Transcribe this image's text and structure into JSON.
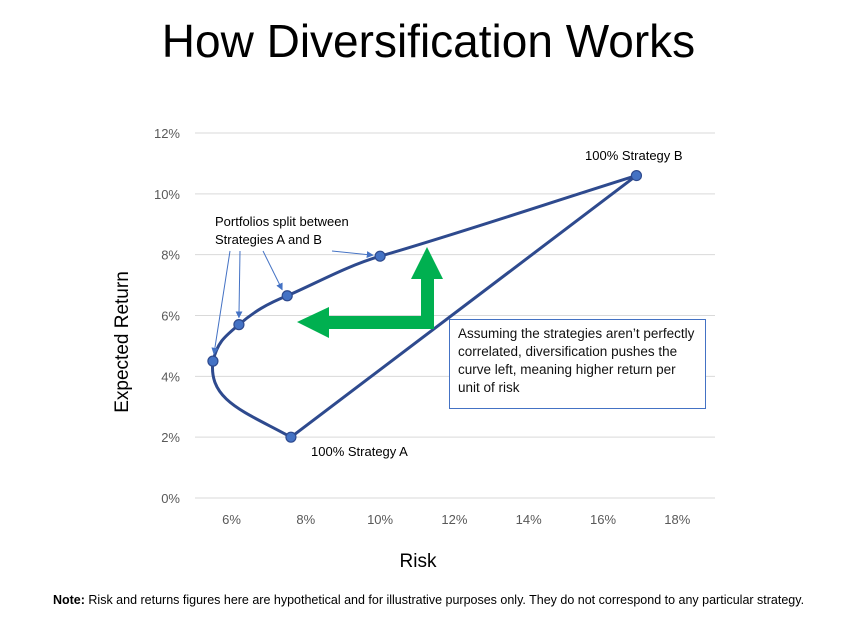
{
  "title": "How Diversification Works",
  "note": {
    "prefix": "Note:",
    "text": "Risk and returns figures here are hypothetical and for illustrative purposes only. They do not correspond to any particular strategy."
  },
  "callout": "Assuming the strategies aren’t perfectly correlated, diversification pushes the curve left, meaning higher return per unit of risk",
  "colors": {
    "curve": "#2e4a8e",
    "point": "#4472c4",
    "arrow": "#00b050",
    "grid": "#d9d9d9"
  },
  "chart_data": {
    "type": "line",
    "title": "How Diversification Works",
    "xlabel": "Risk",
    "ylabel": "Expected Return",
    "xlim": [
      5,
      19
    ],
    "ylim": [
      0,
      12
    ],
    "x_ticks": [
      6,
      8,
      10,
      12,
      14,
      16,
      18
    ],
    "x_tick_labels": [
      "6%",
      "8%",
      "10%",
      "12%",
      "14%",
      "16%",
      "18%"
    ],
    "y_ticks": [
      0,
      2,
      4,
      6,
      8,
      10,
      12
    ],
    "y_tick_labels": [
      "0%",
      "2%",
      "4%",
      "6%",
      "8%",
      "10%",
      "12%"
    ],
    "grid": "horizontal",
    "series": [
      {
        "points": [
          {
            "x": 7.6,
            "y": 2.0
          },
          {
            "x": 5.5,
            "y": 4.5
          },
          {
            "x": 6.2,
            "y": 5.7
          },
          {
            "x": 7.5,
            "y": 6.65
          },
          {
            "x": 10.0,
            "y": 7.95
          },
          {
            "x": 16.9,
            "y": 10.6
          }
        ]
      }
    ],
    "annotations": {
      "strategy_a": "100% Strategy A",
      "strategy_b": "100% Strategy B",
      "split_line1": "Portfolios split between",
      "split_line2": "Strategies A and B"
    }
  }
}
